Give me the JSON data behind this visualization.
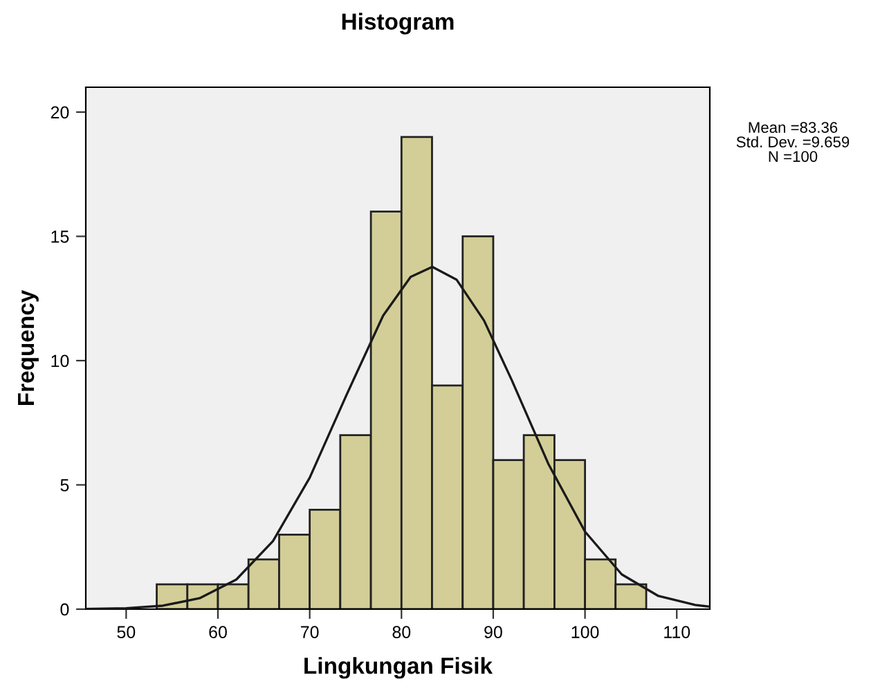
{
  "chart_data": {
    "type": "histogram",
    "title": "Histogram",
    "xlabel": "Lingkungan Fisik",
    "ylabel": "Frequency",
    "bins": [
      53.33,
      56.67,
      60,
      63.33,
      66.67,
      70,
      73.33,
      76.67,
      80,
      83.33,
      86.67,
      90,
      93.33,
      96.67,
      100,
      103.33,
      106.67
    ],
    "values": [
      1,
      1,
      1,
      2,
      3,
      4,
      7,
      16,
      19,
      9,
      15,
      6,
      7,
      6,
      2,
      1
    ],
    "color": "#d3ce97",
    "series": [
      {
        "type": "line",
        "color": "#1a1a1a",
        "x": [
          45.6,
          50,
          54,
          58,
          62,
          66,
          70,
          74,
          78,
          81,
          83.36,
          86,
          89,
          92,
          96,
          100,
          104,
          108,
          112,
          113.6
        ],
        "values": [
          0.01,
          0.04,
          0.14,
          0.44,
          1.19,
          2.74,
          5.29,
          8.61,
          11.81,
          13.37,
          13.77,
          13.26,
          11.61,
          9.23,
          5.85,
          3.12,
          1.4,
          0.53,
          0.17,
          0.1
        ]
      }
    ],
    "xlim": [
      45.6,
      113.6
    ],
    "ylim": [
      0,
      21
    ],
    "xticks": [
      50,
      60,
      70,
      80,
      90,
      100,
      110
    ],
    "yticks": [
      0,
      5,
      10,
      15,
      20
    ],
    "grid": false,
    "legend": false,
    "annotations": [
      "Mean =83.36",
      "Std. Dev. =9.659",
      "N =100"
    ]
  }
}
